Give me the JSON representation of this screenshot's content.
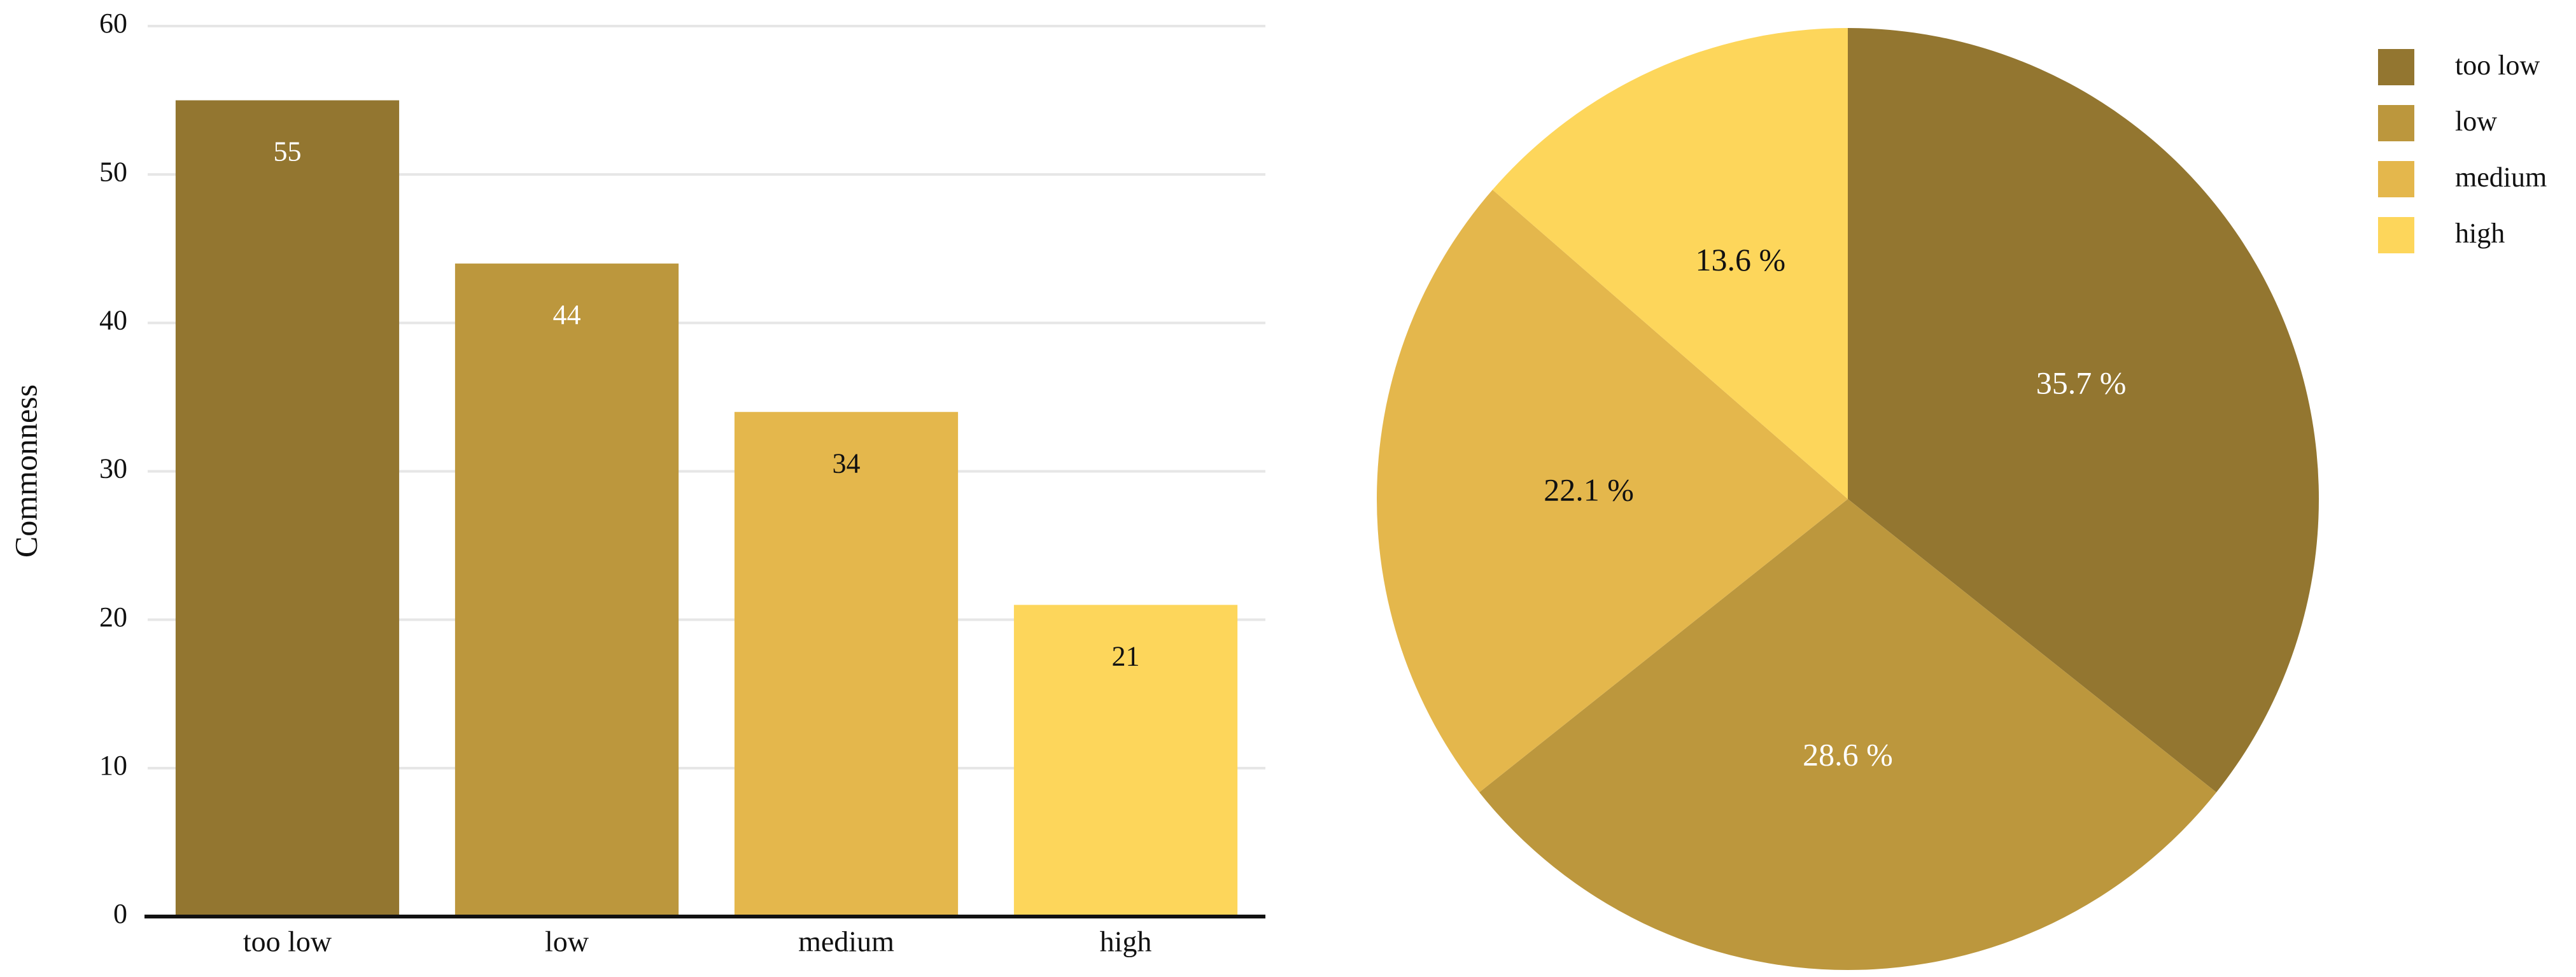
{
  "chart_data": [
    {
      "type": "bar",
      "y_label": "Commonness",
      "categories": [
        "too low",
        "low",
        "medium",
        "high"
      ],
      "values": [
        55,
        44,
        34,
        21
      ],
      "colors": [
        "#937630",
        "#bc973d",
        "#e4b74c",
        "#fdd65b"
      ],
      "ylim": [
        0,
        60
      ],
      "yticks": [
        0,
        10,
        20,
        30,
        40,
        50,
        60
      ],
      "grid": true
    },
    {
      "type": "pie",
      "categories": [
        "too low",
        "low",
        "medium",
        "high"
      ],
      "values": [
        35.7,
        28.6,
        22.1,
        13.6
      ],
      "value_labels": [
        "35.7 %",
        "28.6 %",
        "22.1 %",
        "13.6 %"
      ],
      "colors": [
        "#937630",
        "#bc973d",
        "#e4b74c",
        "#fdd65b"
      ],
      "legend": "upper right"
    }
  ]
}
